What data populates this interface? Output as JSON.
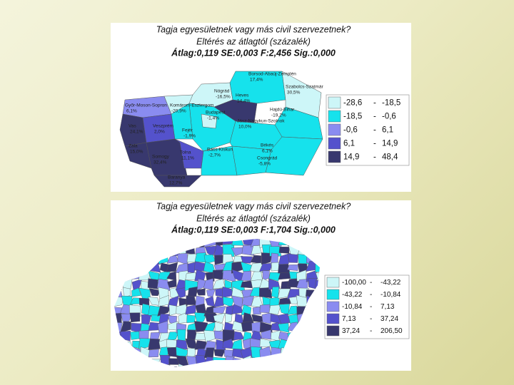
{
  "panels": [
    {
      "title": "Tagja egyesületnek vagy más civil szervezetnek?",
      "subtitle": "Eltérés az átlagtól (százalék)",
      "stats": "Átlag:0,119 SE:0,003 F:2,456 Sig.:0,000",
      "legend_separator": "-",
      "legend": [
        {
          "from": "-28,6",
          "to": "-18,5",
          "color": "#cdf6f8"
        },
        {
          "from": "-18,5",
          "to": "-0,6",
          "color": "#16e2ec"
        },
        {
          "from": "-0,6",
          "to": "6,1",
          "color": "#8a8cf0"
        },
        {
          "from": "6,1",
          "to": "14,9",
          "color": "#5452cc"
        },
        {
          "from": "14,9",
          "to": "48,4",
          "color": "#38386e"
        }
      ],
      "regions": [
        {
          "name": "Borsod-Abaúj-Zemplén",
          "value": "17,4%"
        },
        {
          "name": "Nógrád",
          "value": "-16,5%"
        },
        {
          "name": "Heves",
          "value": "14,4%"
        },
        {
          "name": "Szabolcs-Szatmár",
          "value": "30,5%"
        },
        {
          "name": "Győr-Moson-Sopron",
          "value": "6,1%"
        },
        {
          "name": "Komárom-Esztergom",
          "value": "-20,9%"
        },
        {
          "name": "Budapest",
          "value": "-1,4%"
        },
        {
          "name": "Hajdú-Bihar",
          "value": "-19,2%"
        },
        {
          "name": "Jász-Nagykun-Szolnok",
          "value": "10,0%"
        },
        {
          "name": "Vas",
          "value": "24,1%"
        },
        {
          "name": "Veszprém",
          "value": "2,0%"
        },
        {
          "name": "Fejér",
          "value": "-1,9%"
        },
        {
          "name": "Zala",
          "value": "15,0%"
        },
        {
          "name": "Somogy",
          "value": "32,4%"
        },
        {
          "name": "Tolna",
          "value": "11,1%"
        },
        {
          "name": "Bács-Kiskun",
          "value": "-2,7%"
        },
        {
          "name": "Békés",
          "value": "6,1%"
        },
        {
          "name": "Csongrád",
          "value": "-5,8%"
        },
        {
          "name": "Baranya",
          "value": "12,7%"
        }
      ]
    },
    {
      "title": "Tagja egyesületnek vagy más civil szervezetnek?",
      "subtitle": "Eltérés az átlagtól (százalék)",
      "stats": "Átlag:0,119 SE:0,003 F:1,704 Sig.:0,000",
      "legend_separator": "-",
      "legend": [
        {
          "from": "-100,00",
          "to": "-43,22",
          "color": "#cdf6f8"
        },
        {
          "from": "-43,22",
          "to": "-10,84",
          "color": "#16e2ec"
        },
        {
          "from": "-10,84",
          "to": "7,13",
          "color": "#8a8cf0"
        },
        {
          "from": "7,13",
          "to": "37,24",
          "color": "#5452cc"
        },
        {
          "from": "37,24",
          "to": "206,50",
          "color": "#38386e"
        }
      ]
    }
  ]
}
